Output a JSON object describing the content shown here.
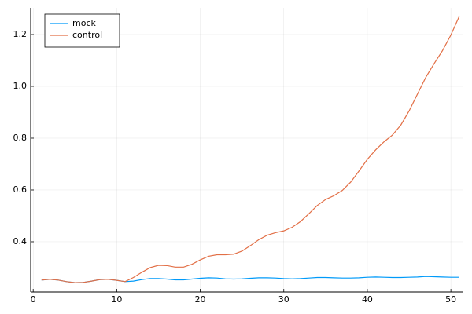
{
  "chart_data": {
    "type": "line",
    "x": [
      1,
      2,
      3,
      4,
      5,
      6,
      7,
      8,
      9,
      10,
      11,
      12,
      13,
      14,
      15,
      16,
      17,
      18,
      19,
      20,
      21,
      22,
      23,
      24,
      25,
      26,
      27,
      28,
      29,
      30,
      31,
      32,
      33,
      34,
      35,
      36,
      37,
      38,
      39,
      40,
      41,
      42,
      43,
      44,
      45,
      46,
      47,
      48,
      49,
      50,
      51
    ],
    "series": [
      {
        "name": "mock",
        "color": "#009af9",
        "values": [
          0.252,
          0.255,
          0.252,
          0.246,
          0.242,
          0.243,
          0.248,
          0.254,
          0.255,
          0.251,
          0.246,
          0.248,
          0.254,
          0.258,
          0.258,
          0.256,
          0.253,
          0.253,
          0.256,
          0.259,
          0.261,
          0.26,
          0.257,
          0.256,
          0.257,
          0.259,
          0.261,
          0.261,
          0.26,
          0.258,
          0.257,
          0.258,
          0.26,
          0.262,
          0.262,
          0.261,
          0.26,
          0.26,
          0.261,
          0.263,
          0.264,
          0.263,
          0.262,
          0.262,
          0.263,
          0.264,
          0.266,
          0.265,
          0.264,
          0.263,
          0.263
        ]
      },
      {
        "name": "control",
        "color": "#e26f46",
        "values": [
          0.252,
          0.255,
          0.252,
          0.246,
          0.242,
          0.243,
          0.248,
          0.254,
          0.255,
          0.251,
          0.246,
          0.262,
          0.282,
          0.3,
          0.309,
          0.308,
          0.302,
          0.302,
          0.313,
          0.33,
          0.344,
          0.35,
          0.35,
          0.352,
          0.364,
          0.385,
          0.408,
          0.425,
          0.435,
          0.442,
          0.456,
          0.478,
          0.508,
          0.54,
          0.563,
          0.578,
          0.598,
          0.63,
          0.673,
          0.718,
          0.755,
          0.786,
          0.812,
          0.85,
          0.905,
          0.97,
          1.035,
          1.088,
          1.138,
          1.198,
          1.27
        ]
      }
    ],
    "xlim": [
      -0.3,
      51.4
    ],
    "xticks": [
      0,
      10,
      20,
      30,
      40,
      50
    ],
    "ylim": [
      0.206,
      1.303
    ],
    "yticks": [
      0.4,
      0.6,
      0.8,
      {
        "value": 1,
        "label": "1.0"
      },
      1.2
    ],
    "grid": true,
    "legend": "top-left"
  }
}
